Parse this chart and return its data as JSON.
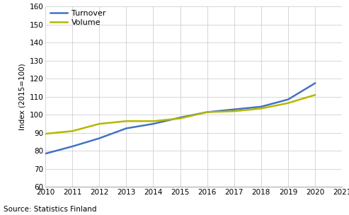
{
  "turnover": {
    "x": [
      2010,
      2011,
      2012,
      2013,
      2014,
      2015,
      2016,
      2017,
      2018,
      2019,
      2020
    ],
    "y": [
      78.5,
      82.5,
      87.0,
      92.5,
      95.0,
      98.5,
      101.5,
      103.0,
      104.5,
      108.5,
      117.5
    ]
  },
  "volume": {
    "x": [
      2010,
      2011,
      2012,
      2013,
      2014,
      2015,
      2016,
      2017,
      2018,
      2019,
      2020
    ],
    "y": [
      89.5,
      91.0,
      95.0,
      96.5,
      96.5,
      98.0,
      101.5,
      102.0,
      103.5,
      106.5,
      111.0
    ]
  },
  "turnover_color": "#4472c4",
  "volume_color": "#b5b800",
  "ylabel": "Index (2015=100)",
  "ylim": [
    60,
    160
  ],
  "xlim": [
    2010,
    2021
  ],
  "yticks": [
    60,
    70,
    80,
    90,
    100,
    110,
    120,
    130,
    140,
    150,
    160
  ],
  "xticks": [
    2010,
    2011,
    2012,
    2013,
    2014,
    2015,
    2016,
    2017,
    2018,
    2019,
    2020,
    2021
  ],
  "source_text": "Source: Statistics Finland",
  "legend_labels": [
    "Turnover",
    "Volume"
  ],
  "grid_color": "#d0d0d0",
  "background_color": "#ffffff",
  "line_width": 1.8
}
